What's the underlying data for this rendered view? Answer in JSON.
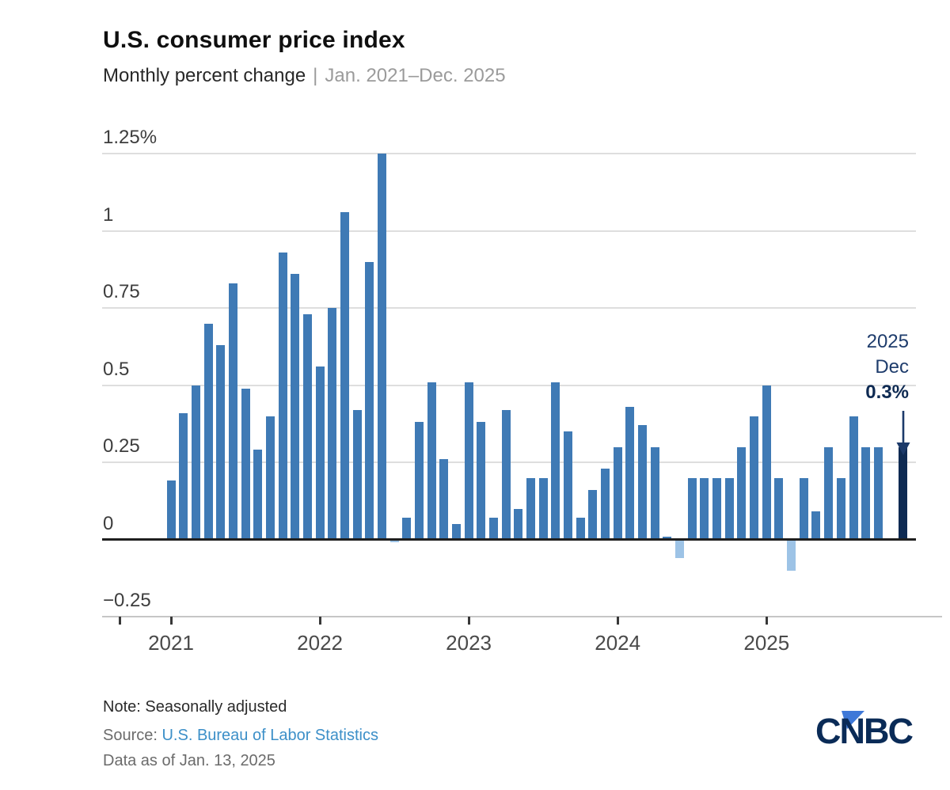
{
  "header": {
    "title": "U.S. consumer price index",
    "subtitle_measure": "Monthly percent change",
    "subtitle_separator": "|",
    "subtitle_range": "Jan. 2021–Dec. 2025"
  },
  "chart_data": {
    "type": "bar",
    "title": "U.S. consumer price index",
    "subtitle": "Monthly percent change | Jan. 2021–Dec. 2025",
    "ylabel": "Monthly percent change (%)",
    "xlabel": "",
    "ylim": [
      -0.25,
      1.25
    ],
    "grid": true,
    "legend_position": "none",
    "yticks": [
      {
        "label": "1.25%",
        "value": 1.25
      },
      {
        "label": "1",
        "value": 1.0
      },
      {
        "label": "0.75",
        "value": 0.75
      },
      {
        "label": "0.5",
        "value": 0.5
      },
      {
        "label": "0.25",
        "value": 0.25
      },
      {
        "label": "0",
        "value": 0.0
      },
      {
        "label": "−0.25",
        "value": -0.25
      }
    ],
    "x": [
      "Jan 2021",
      "Feb 2021",
      "Mar 2021",
      "Apr 2021",
      "May 2021",
      "Jun 2021",
      "Jul 2021",
      "Aug 2021",
      "Sep 2021",
      "Oct 2021",
      "Nov 2021",
      "Dec 2021",
      "Jan 2022",
      "Feb 2022",
      "Mar 2022",
      "Apr 2022",
      "May 2022",
      "Jun 2022",
      "Jul 2022",
      "Aug 2022",
      "Sep 2022",
      "Oct 2022",
      "Nov 2022",
      "Dec 2022",
      "Jan 2023",
      "Feb 2023",
      "Mar 2023",
      "Apr 2023",
      "May 2023",
      "Jun 2023",
      "Jul 2023",
      "Aug 2023",
      "Sep 2023",
      "Oct 2023",
      "Nov 2023",
      "Dec 2023",
      "Jan 2024",
      "Feb 2024",
      "Mar 2024",
      "Apr 2024",
      "May 2024",
      "Jun 2024",
      "Jul 2024",
      "Aug 2024",
      "Sep 2024",
      "Oct 2024",
      "Nov 2024",
      "Dec 2024",
      "Jan 2025",
      "Feb 2025",
      "Mar 2025",
      "Apr 2025",
      "May 2025",
      "Jun 2025",
      "Jul 2025",
      "Aug 2025",
      "Sep 2025",
      "Oct 2025",
      "Nov 2025",
      "Dec 2025"
    ],
    "values": [
      0.19,
      0.41,
      0.5,
      0.7,
      0.63,
      0.83,
      0.49,
      0.29,
      0.4,
      0.93,
      0.86,
      0.73,
      0.56,
      0.75,
      1.06,
      0.42,
      0.9,
      1.25,
      -0.01,
      0.07,
      0.38,
      0.51,
      0.26,
      0.05,
      0.51,
      0.38,
      0.07,
      0.42,
      0.1,
      0.2,
      0.2,
      0.51,
      0.35,
      0.07,
      0.16,
      0.23,
      0.3,
      0.43,
      0.37,
      0.3,
      0.01,
      -0.06,
      0.2,
      0.2,
      0.2,
      0.2,
      0.3,
      0.4,
      0.5,
      0.2,
      -0.1,
      0.2,
      0.09,
      0.3,
      0.2,
      0.4,
      0.3,
      0.3,
      0.0,
      0.3
    ],
    "highlight_index": 59,
    "year_ticks": [
      {
        "label": "2021",
        "start_index": 0
      },
      {
        "label": "2022",
        "start_index": 12
      },
      {
        "label": "2023",
        "start_index": 24
      },
      {
        "label": "2024",
        "start_index": 36
      },
      {
        "label": "2025",
        "start_index": 48
      }
    ]
  },
  "annotation": {
    "year": "2025",
    "month": "Dec",
    "value": "0.3%"
  },
  "footer": {
    "note": "Note: Seasonally adjusted",
    "source_label": "Source: ",
    "source_link": "U.S. Bureau of Labor Statistics",
    "data_as_of": "Data as of Jan. 13, 2025"
  },
  "logo": {
    "text": "CNBC"
  },
  "colors": {
    "bar": "#3f7ab5",
    "negative_bar": "#9dc3e6",
    "highlight_bar": "#0e2a52",
    "annotation_text": "#1e3c6c",
    "annotation_value": "#0e2a52",
    "source_link": "#3c8fc8",
    "logo_navy": "#0a2b57",
    "logo_blue": "#3e78d8"
  }
}
